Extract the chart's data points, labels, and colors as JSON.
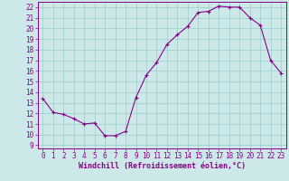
{
  "hours": [
    0,
    1,
    2,
    3,
    4,
    5,
    6,
    7,
    8,
    9,
    10,
    11,
    12,
    13,
    14,
    15,
    16,
    17,
    18,
    19,
    20,
    21,
    22,
    23
  ],
  "values": [
    13.4,
    12.1,
    11.9,
    11.5,
    11.0,
    11.1,
    9.9,
    9.9,
    10.3,
    13.5,
    15.6,
    16.8,
    18.5,
    19.4,
    20.2,
    21.5,
    21.6,
    22.1,
    22.0,
    22.0,
    21.0,
    20.3,
    17.0,
    15.8
  ],
  "line_color": "#880088",
  "marker": "+",
  "bg_color": "#cce8e8",
  "grid_color": "#99cccc",
  "xlabel": "Windchill (Refroidissement éolien,°C)",
  "ylabel_ticks": [
    9,
    10,
    11,
    12,
    13,
    14,
    15,
    16,
    17,
    18,
    19,
    20,
    21,
    22
  ],
  "ylim": [
    8.7,
    22.5
  ],
  "xlim": [
    -0.5,
    23.5
  ],
  "tick_fontsize": 5.5,
  "xlabel_fontsize": 6.0
}
